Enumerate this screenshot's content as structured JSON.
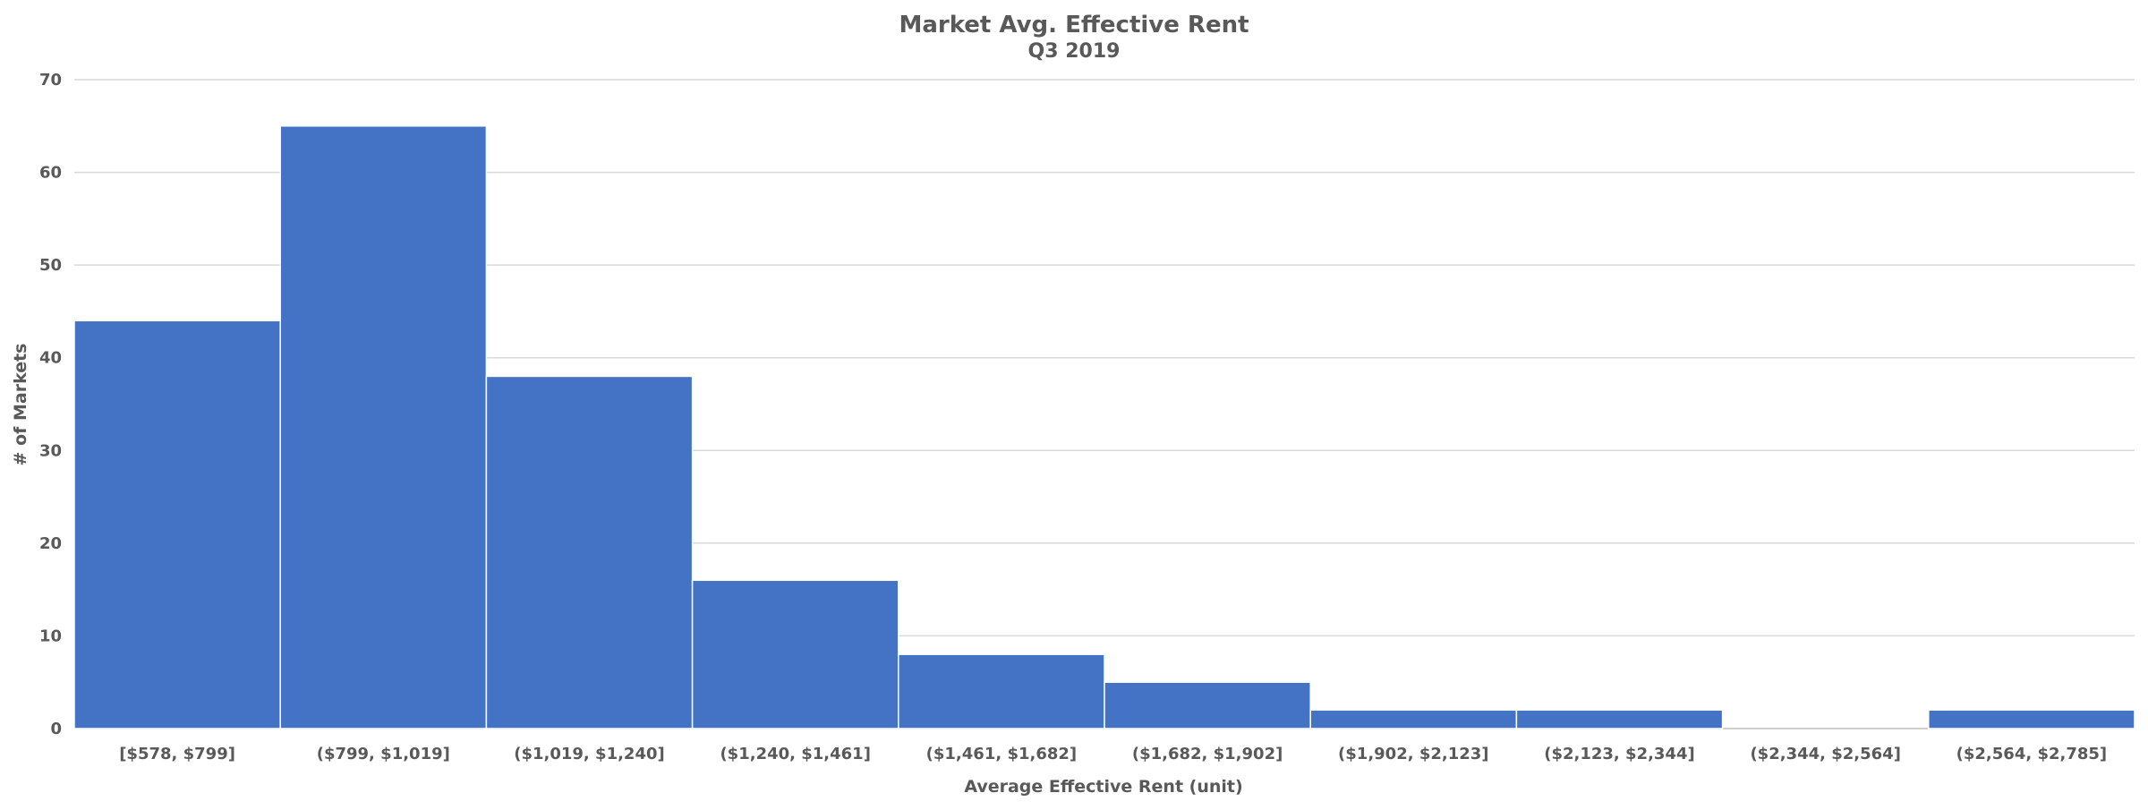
{
  "chart_data": {
    "type": "bar",
    "title": "Market Avg. Effective Rent",
    "subtitle": "Q3 2019",
    "xlabel": "Average Effective Rent (unit)",
    "ylabel": "# of Markets",
    "categories": [
      "[$578, $799]",
      "($799, $1,019]",
      "($1,019, $1,240]",
      "($1,240, $1,461]",
      "($1,461, $1,682]",
      "($1,682, $1,902]",
      "($1,902, $2,123]",
      "($2,123, $2,344]",
      "($2,344, $2,564]",
      "($2,564, $2,785]"
    ],
    "values": [
      44,
      65,
      38,
      16,
      8,
      5,
      2,
      2,
      0,
      2
    ],
    "ylim": [
      0,
      70
    ],
    "yticks": [
      0,
      10,
      20,
      30,
      40,
      50,
      60,
      70
    ],
    "grid": true,
    "legend": "none",
    "bar_color": "#4472C4"
  }
}
